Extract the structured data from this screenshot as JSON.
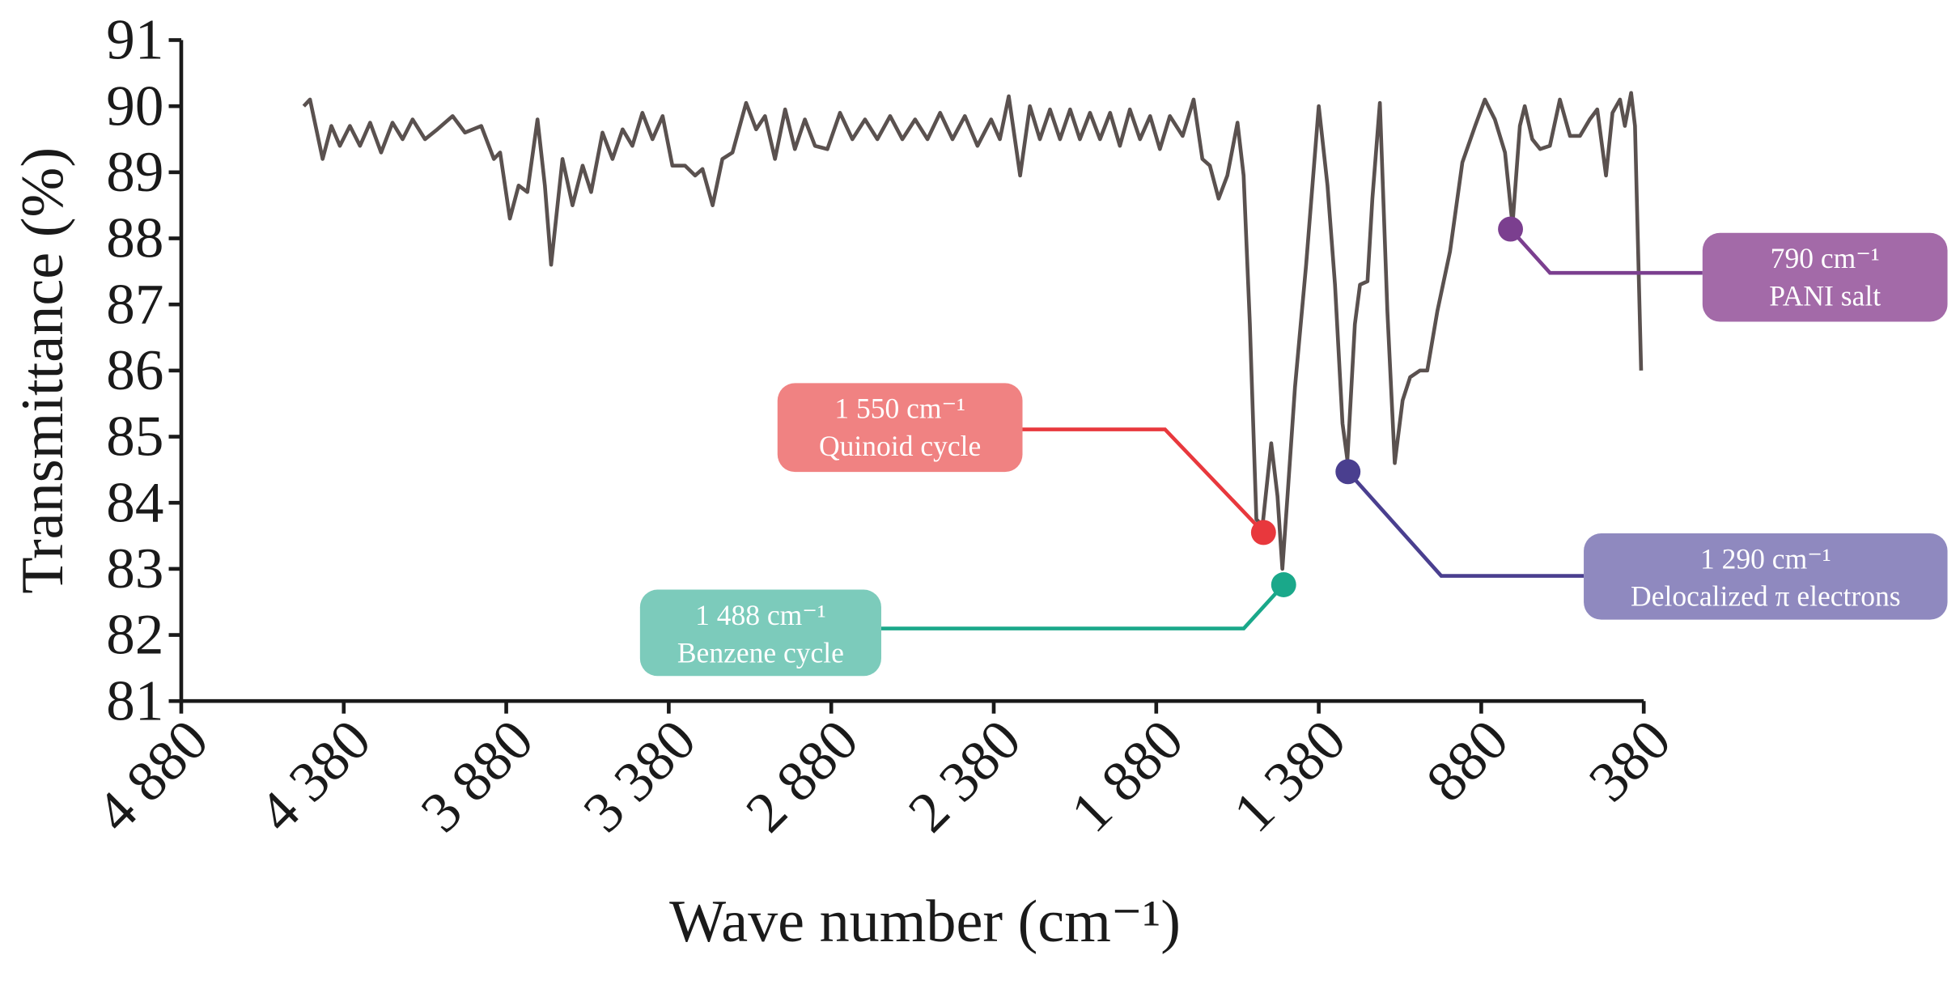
{
  "chart_data": {
    "type": "line",
    "xlabel": "Wave number (cm⁻¹)",
    "ylabel": "Transmittance (%)",
    "xlim": [
      4880,
      380
    ],
    "ylim": [
      81,
      91
    ],
    "xticks": [
      {
        "value": 4880,
        "label": "4 880"
      },
      {
        "value": 4380,
        "label": "4 380"
      },
      {
        "value": 3880,
        "label": "3 880"
      },
      {
        "value": 3380,
        "label": "3 380"
      },
      {
        "value": 2880,
        "label": "2 880"
      },
      {
        "value": 2380,
        "label": "2 380"
      },
      {
        "value": 1880,
        "label": "1 880"
      },
      {
        "value": 1380,
        "label": "1 380"
      },
      880,
      380
    ],
    "yticks": [
      81,
      82,
      83,
      84,
      85,
      86,
      87,
      88,
      89,
      90,
      91
    ],
    "grid": false,
    "x": [
      4503,
      4484,
      4445,
      4418,
      4392,
      4361,
      4330,
      4299,
      4265,
      4230,
      4199,
      4168,
      4130,
      4092,
      4045,
      4007,
      3957,
      3918,
      3899,
      3869,
      3842,
      3815,
      3784,
      3761,
      3742,
      3707,
      3676,
      3645,
      3619,
      3584,
      3553,
      3522,
      3492,
      3461,
      3430,
      3399,
      3369,
      3330,
      3299,
      3276,
      3245,
      3215,
      3184,
      3142,
      3111,
      3084,
      3053,
      3022,
      2992,
      2961,
      2930,
      2892,
      2853,
      2815,
      2776,
      2738,
      2699,
      2661,
      2622,
      2584,
      2545,
      2507,
      2469,
      2430,
      2388,
      2361,
      2334,
      2299,
      2269,
      2238,
      2207,
      2176,
      2145,
      2115,
      2084,
      2053,
      2022,
      1992,
      1961,
      1930,
      1899,
      1869,
      1838,
      1799,
      1765,
      1738,
      1715,
      1688,
      1661,
      1630,
      1611,
      1592,
      1572,
      1553,
      1526,
      1507,
      1492,
      1476,
      1453,
      1419,
      1380,
      1353,
      1330,
      1307,
      1292,
      1269,
      1253,
      1230,
      1215,
      1192,
      1169,
      1146,
      1122,
      1099,
      1069,
      1046,
      1015,
      976,
      938,
      899,
      869,
      838,
      807,
      784,
      761,
      746,
      723,
      699,
      669,
      638,
      607,
      576,
      546,
      523,
      496,
      476,
      453,
      438,
      419,
      407,
      388
    ],
    "series": [
      {
        "color": "#5a514f",
        "values": [
          90.0,
          90.1,
          89.2,
          89.7,
          89.4,
          89.7,
          89.4,
          89.75,
          89.3,
          89.75,
          89.5,
          89.8,
          89.5,
          89.65,
          89.85,
          89.6,
          89.7,
          89.2,
          89.3,
          88.3,
          88.8,
          88.7,
          89.8,
          88.8,
          87.6,
          89.2,
          88.5,
          89.1,
          88.7,
          89.6,
          89.2,
          89.65,
          89.4,
          89.9,
          89.5,
          89.85,
          89.1,
          89.1,
          88.95,
          89.05,
          88.5,
          89.2,
          89.3,
          90.05,
          89.65,
          89.85,
          89.2,
          89.95,
          89.35,
          89.8,
          89.4,
          89.35,
          89.9,
          89.5,
          89.8,
          89.5,
          89.85,
          89.5,
          89.8,
          89.5,
          89.9,
          89.5,
          89.85,
          89.4,
          89.8,
          89.5,
          90.15,
          88.95,
          90.0,
          89.5,
          89.95,
          89.5,
          89.95,
          89.5,
          89.9,
          89.5,
          89.9,
          89.4,
          89.95,
          89.5,
          89.85,
          89.35,
          89.85,
          89.55,
          90.1,
          89.2,
          89.1,
          88.6,
          88.95,
          89.75,
          88.95,
          86.7,
          83.75,
          83.65,
          84.9,
          84.1,
          83.0,
          84.1,
          85.75,
          87.6,
          90.0,
          88.8,
          87.3,
          85.2,
          84.65,
          86.7,
          87.3,
          87.35,
          88.6,
          90.05,
          86.9,
          84.6,
          85.55,
          85.9,
          86.0,
          86.0,
          86.9,
          87.8,
          89.15,
          89.7,
          90.1,
          89.8,
          89.3,
          88.2,
          89.7,
          90.0,
          89.5,
          89.35,
          89.4,
          90.1,
          89.55,
          89.55,
          89.8,
          89.95,
          88.95,
          89.9,
          90.1,
          89.7,
          90.2,
          89.7,
          86.0
        ]
      }
    ],
    "annotations": [
      {
        "x": 1550,
        "y": 83.55,
        "color": "#e8383d",
        "box_color": "#f08282",
        "lines": [
          "1 550 cm⁻¹",
          "Quinoid cycle"
        ]
      },
      {
        "x": 1488,
        "y": 82.76,
        "color": "#1aa88a",
        "box_color": "#7ccbbb",
        "lines": [
          "1 488 cm⁻¹",
          "Benzene cycle"
        ]
      },
      {
        "x": 1290,
        "y": 84.47,
        "color": "#4a3f8f",
        "box_color": "#8f89bf",
        "lines": [
          "1 290 cm⁻¹",
          "Delocalized π electrons"
        ]
      },
      {
        "x": 790,
        "y": 88.14,
        "color": "#7b3f8f",
        "box_color": "#a36aa8",
        "lines": [
          "790 cm⁻¹",
          "PANI salt"
        ]
      }
    ]
  }
}
